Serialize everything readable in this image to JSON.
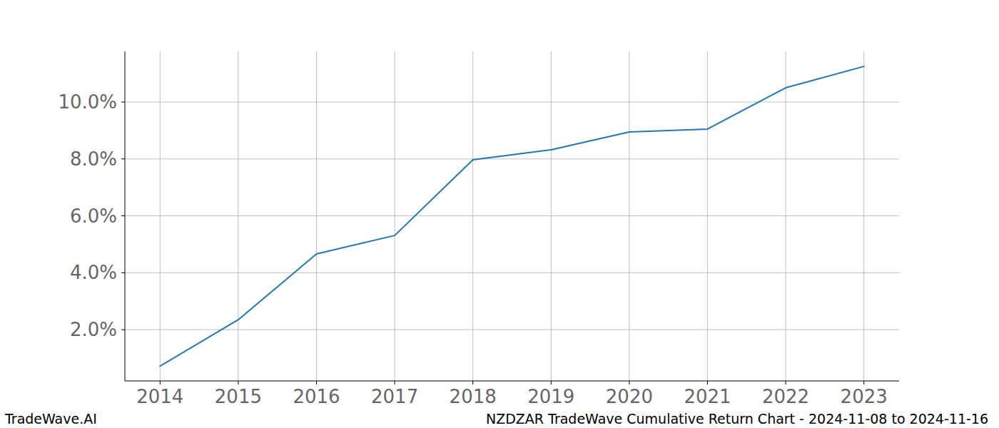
{
  "chart_data": {
    "type": "line",
    "title": "NZDZAR TradeWave Cumulative Return Chart - 2024-11-08 to 2024-11-16",
    "annotations": [
      "TradeWave.AI"
    ],
    "x": [
      2014,
      2015,
      2016,
      2017,
      2018,
      2019,
      2020,
      2021,
      2022,
      2023
    ],
    "series": [
      {
        "name": "NZDZAR",
        "color": "#1f77b4",
        "values": [
          0.72,
          2.35,
          4.66,
          5.31,
          7.97,
          8.32,
          8.95,
          9.05,
          10.5,
          11.25
        ]
      }
    ],
    "xlim": [
      2013.55,
      2023.45
    ],
    "xticks": [
      2014,
      2015,
      2016,
      2017,
      2018,
      2019,
      2020,
      2021,
      2022,
      2023
    ],
    "ylim": [
      0.2,
      11.78
    ],
    "yticks": [
      {
        "value": 2,
        "label": "2.0%"
      },
      {
        "value": 4,
        "label": "4.0%"
      },
      {
        "value": 6,
        "label": "6.0%"
      },
      {
        "value": 8,
        "label": "8.0%"
      },
      {
        "value": 10,
        "label": "10.0%"
      }
    ],
    "grid": true
  }
}
